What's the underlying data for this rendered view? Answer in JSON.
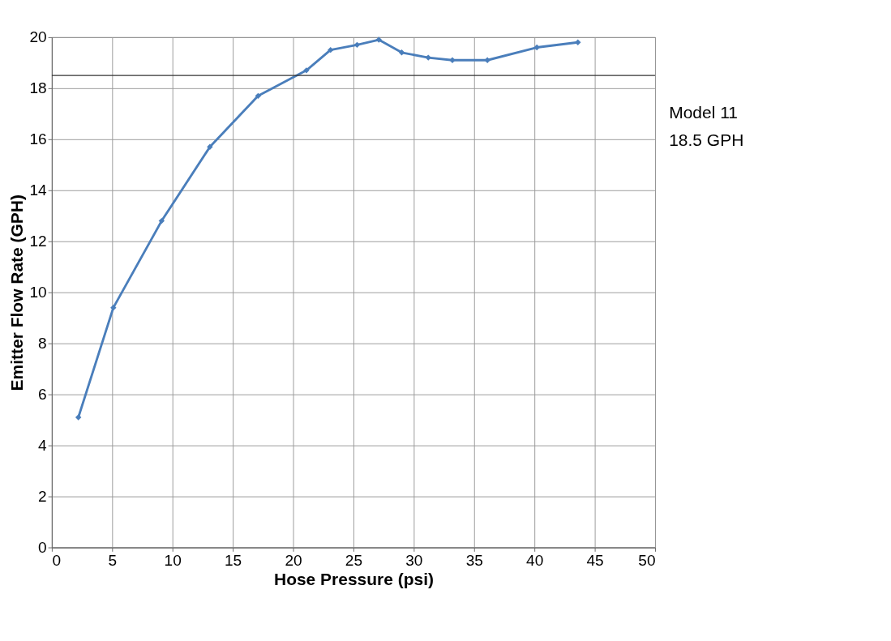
{
  "chart_data": {
    "type": "line",
    "xlabel": "Hose Pressure (psi)",
    "ylabel": "Emitter Flow Rate (GPH)",
    "x": [
      2.2,
      5.1,
      9.1,
      13.1,
      17.1,
      21.1,
      23.1,
      25.3,
      27.1,
      29.0,
      31.2,
      33.2,
      36.1,
      40.2,
      43.6
    ],
    "series": [
      {
        "color": "#4a7ebb",
        "values": [
          5.1,
          9.4,
          12.8,
          15.7,
          17.7,
          18.7,
          19.5,
          19.7,
          19.9,
          19.4,
          19.2,
          19.1,
          19.1,
          19.6,
          19.8
        ]
      }
    ],
    "xlim": [
      0,
      50
    ],
    "xticks": [
      0,
      5,
      10,
      15,
      20,
      25,
      30,
      35,
      40,
      45,
      50
    ],
    "ylim": [
      0,
      20
    ],
    "yticks": [
      0,
      2,
      4,
      6,
      8,
      10,
      12,
      14,
      16,
      18,
      20
    ],
    "ref_lines": [
      {
        "axis": "y",
        "value": 18.5,
        "color": "#333333"
      }
    ],
    "annotations": [
      "Model 11",
      "18.5 GPH"
    ],
    "grid": true,
    "marker": "diamond",
    "line_style": "solid"
  }
}
